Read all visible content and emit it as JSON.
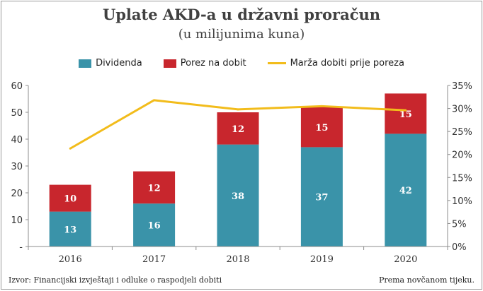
{
  "chart_data": {
    "type": "bar",
    "title": "Uplate AKD-a u državni proračun",
    "subtitle": "(u milijunima kuna)",
    "categories": [
      "2016",
      "2017",
      "2018",
      "2019",
      "2020"
    ],
    "series": [
      {
        "name": "Dividenda",
        "values": [
          13,
          16,
          38,
          37,
          42
        ],
        "color": "#3a93a9",
        "kind": "bar"
      },
      {
        "name": "Porez na dobit",
        "values": [
          10,
          12,
          12,
          15,
          15
        ],
        "color": "#c8262d",
        "kind": "bar"
      },
      {
        "name": "Marža dobiti prije poreza",
        "values": [
          21.3,
          31.8,
          29.8,
          30.5,
          29.6
        ],
        "color": "#f2bc1b",
        "kind": "line",
        "axis": "right",
        "unit": "%"
      }
    ],
    "y_left": {
      "min": 0,
      "max": 60,
      "ticks": [
        "-",
        "10",
        "20",
        "30",
        "40",
        "50",
        "60"
      ]
    },
    "y_right": {
      "min": 0,
      "max": 35,
      "ticks": [
        "0%",
        "5%",
        "10%",
        "15%",
        "20%",
        "25%",
        "30%",
        "35%"
      ]
    },
    "grid": false,
    "legend_position": "top-center"
  },
  "legend": {
    "dividend_label": "Dividenda",
    "tax_label": "Porez na dobit",
    "margin_label": "Marža dobiti prije poreza"
  },
  "footer": {
    "source": "Izvor: Financijski izvještaji i odluke o raspodjeli dobiti",
    "note": "Prema novčanom tijeku."
  }
}
